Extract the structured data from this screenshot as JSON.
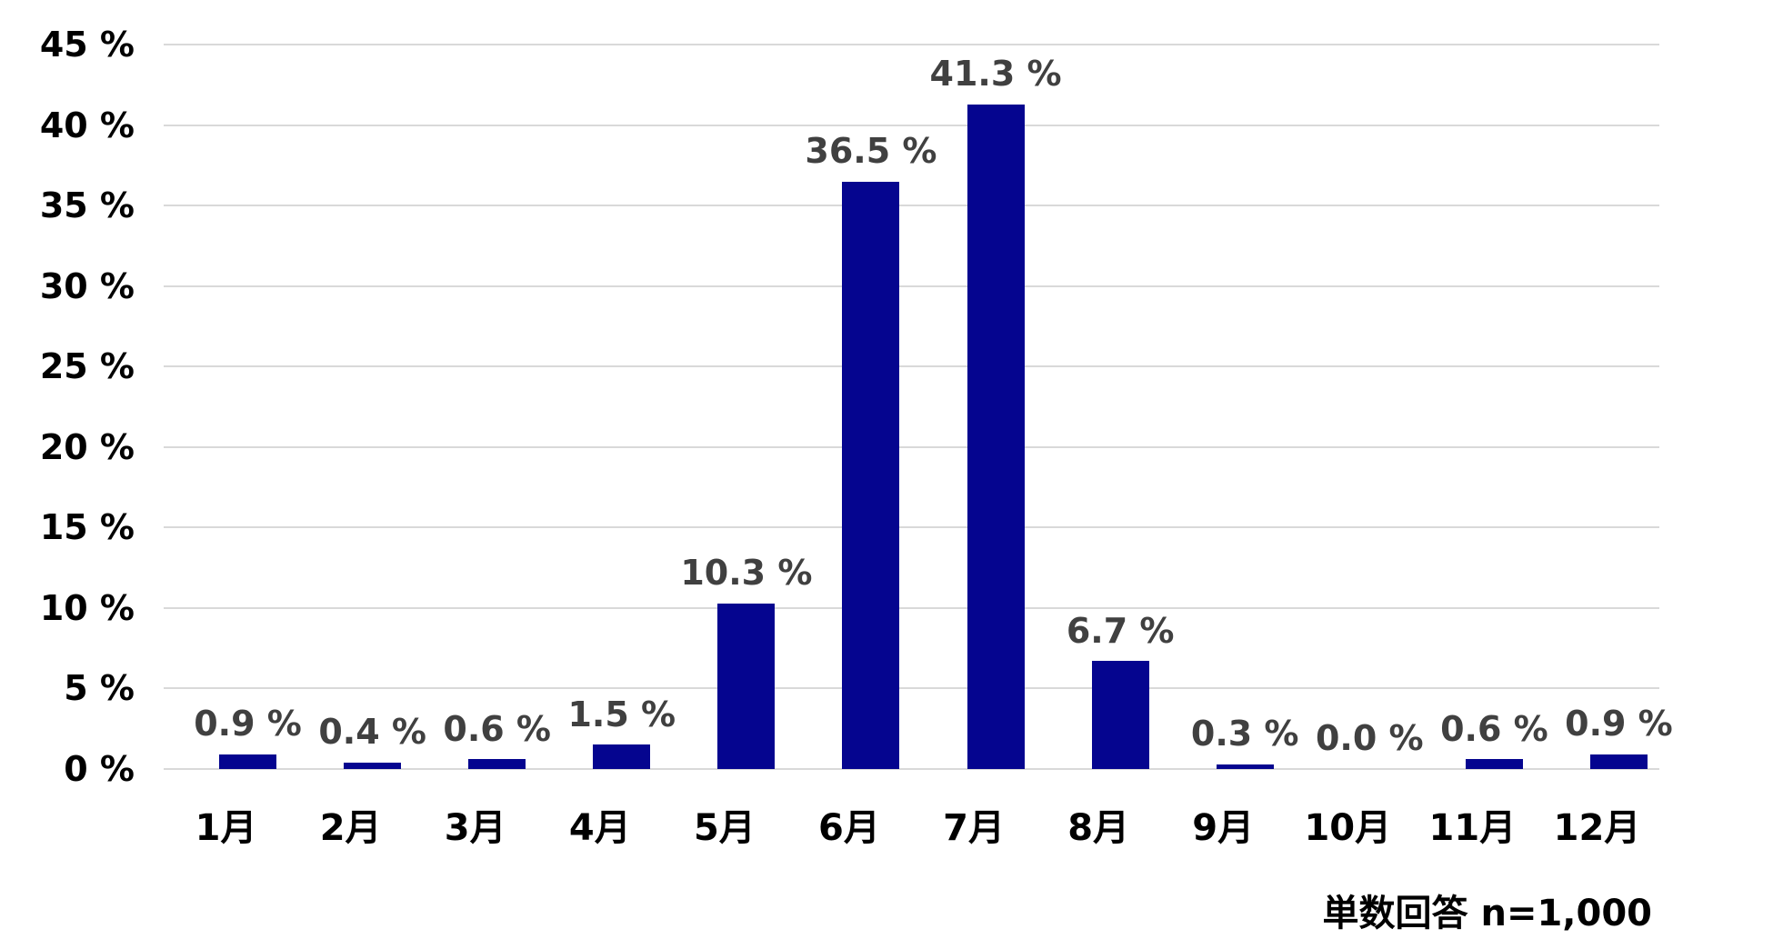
{
  "chart_data": {
    "type": "bar",
    "title": "",
    "xlabel": "",
    "ylabel": "",
    "categories": [
      "1月",
      "2月",
      "3月",
      "4月",
      "5月",
      "6月",
      "7月",
      "8月",
      "9月",
      "10月",
      "11月",
      "12月"
    ],
    "values": [
      0.9,
      0.4,
      0.6,
      1.5,
      10.3,
      36.5,
      41.3,
      6.7,
      0.3,
      0.0,
      0.6,
      0.9
    ],
    "data_labels": [
      "0.9 %",
      "0.4 %",
      "0.6 %",
      "1.5 %",
      "10.3 %",
      "36.5 %",
      "41.3 %",
      "6.7 %",
      "0.3 %",
      "0.0 %",
      "0.6 %",
      "0.9 %"
    ],
    "ylim": [
      0,
      45
    ],
    "ytick_step": 5,
    "ytick_labels": [
      "0 %",
      "5 %",
      "10 %",
      "15 %",
      "20 %",
      "25 %",
      "30 %",
      "35 %",
      "40 %",
      "45 %"
    ],
    "grid": true,
    "legend": false,
    "colors": {
      "bar": "#05058F",
      "gridline": "#D9D9D9",
      "data_label": "#404040",
      "axis_text": "#000000",
      "background": "#FFFFFF"
    }
  },
  "footnote": "単数回答 n=1,000"
}
